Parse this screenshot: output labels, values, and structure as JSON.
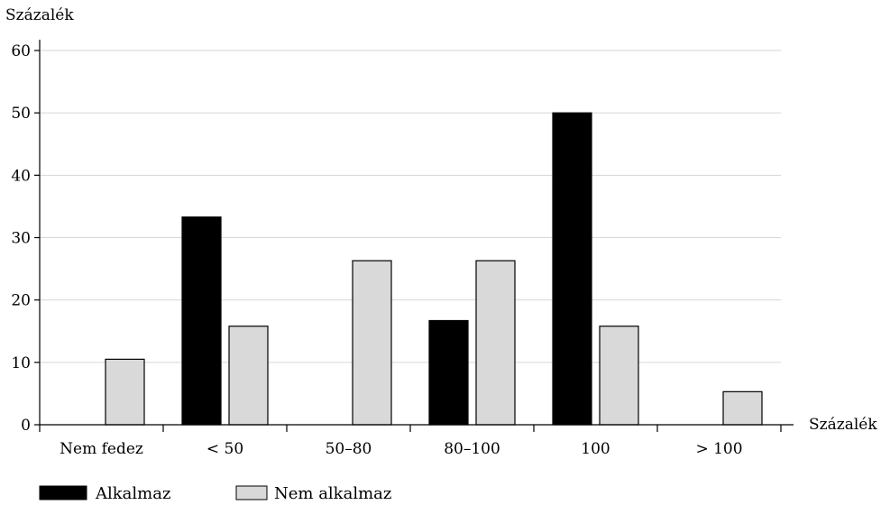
{
  "chart_data": {
    "type": "bar",
    "ylabel": "Százalék",
    "xlabel": "Százalék",
    "categories": [
      "Nem fedez",
      "< 50",
      "50–80",
      "80–100",
      "100",
      "> 100"
    ],
    "series": [
      {
        "name": "Alkalmaz",
        "color": "#000000",
        "values": [
          0,
          33.3,
          0,
          16.7,
          50.0,
          0
        ]
      },
      {
        "name": "Nem alkalmaz",
        "color": "#d9d9d9",
        "values": [
          10.5,
          15.8,
          26.3,
          26.3,
          15.8,
          5.3
        ]
      }
    ],
    "ylim": [
      0,
      60
    ],
    "yticks": [
      0,
      10,
      20,
      30,
      40,
      50,
      60
    ],
    "grid": true,
    "legend_position": "bottom-left"
  }
}
